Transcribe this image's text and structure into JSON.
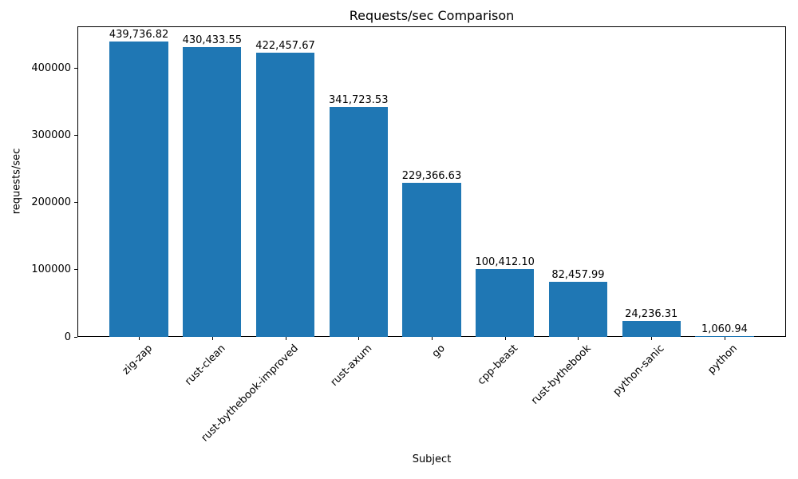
{
  "chart_data": {
    "type": "bar",
    "title": "Requests/sec Comparison",
    "xlabel": "Subject",
    "ylabel": "requests/sec",
    "categories": [
      "zig-zap",
      "rust-clean",
      "rust-bythebook-improved",
      "rust-axum",
      "go",
      "cpp-beast",
      "rust-bythebook",
      "python-sanic",
      "python"
    ],
    "values": [
      439736.82,
      430433.55,
      422457.67,
      341723.53,
      229366.63,
      100412.1,
      82457.99,
      24236.31,
      1060.94
    ],
    "value_labels": [
      "439,736.82",
      "430,433.55",
      "422,457.67",
      "341,723.53",
      "229,366.63",
      "100,412.10",
      "82,457.99",
      "24,236.31",
      "1,060.94"
    ],
    "yticks": [
      0,
      100000,
      200000,
      300000,
      400000
    ],
    "ytick_labels": [
      "0",
      "100000",
      "200000",
      "300000",
      "400000"
    ],
    "ylim": [
      0,
      461723.66
    ],
    "bar_width_fraction": 0.8,
    "bar_color": "#1f77b4",
    "grid": false,
    "legend": null
  }
}
